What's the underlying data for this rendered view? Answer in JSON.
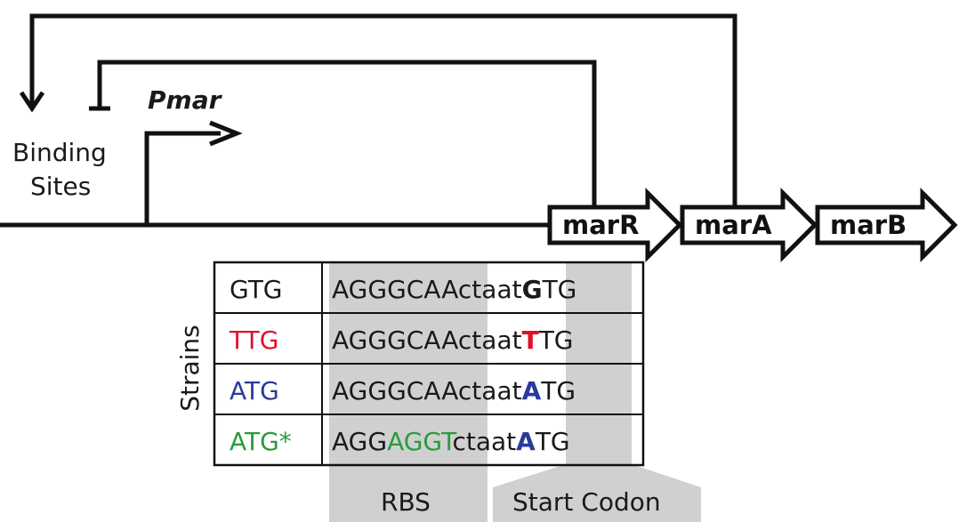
{
  "diagram": {
    "promoter_label": "Pmar",
    "binding_sites_line1": "Binding",
    "binding_sites_line2": "Sites",
    "genes": [
      "marR",
      "marA",
      "marB"
    ],
    "strains_axis_label": "Strains",
    "region_labels": {
      "rbs": "RBS",
      "start_codon": "Start Codon"
    },
    "colors": {
      "line": "#111111",
      "shade": "#d0d0d0",
      "red": "#e0102a",
      "blue": "#2a3a9a",
      "green": "#2c9a3c"
    },
    "strains": [
      {
        "name": "GTG",
        "name_color": "#1a1a1a",
        "rbs_a": "AGG",
        "rbs_b": "GCAA",
        "rbs_b_color": "#1a1a1a",
        "spacer": "ctaat",
        "codon_first": "G",
        "codon_first_color": "#1a1a1a",
        "codon_rest": "TG"
      },
      {
        "name": "TTG",
        "name_color": "#e0102a",
        "rbs_a": "AGG",
        "rbs_b": "GCAA",
        "rbs_b_color": "#1a1a1a",
        "spacer": "ctaat",
        "codon_first": "T",
        "codon_first_color": "#e0102a",
        "codon_rest": "TG"
      },
      {
        "name": "ATG",
        "name_color": "#2a3a9a",
        "rbs_a": "AGG",
        "rbs_b": "GCAA",
        "rbs_b_color": "#1a1a1a",
        "spacer": "ctaat",
        "codon_first": "A",
        "codon_first_color": "#2a3a9a",
        "codon_rest": "TG"
      },
      {
        "name": "ATG*",
        "name_color": "#2c9a3c",
        "rbs_a": "AGG",
        "rbs_b": "AGGT",
        "rbs_b_color": "#2c9a3c",
        "spacer": "ctaat",
        "codon_first": "A",
        "codon_first_color": "#2a3a9a",
        "codon_rest": "TG"
      }
    ]
  }
}
